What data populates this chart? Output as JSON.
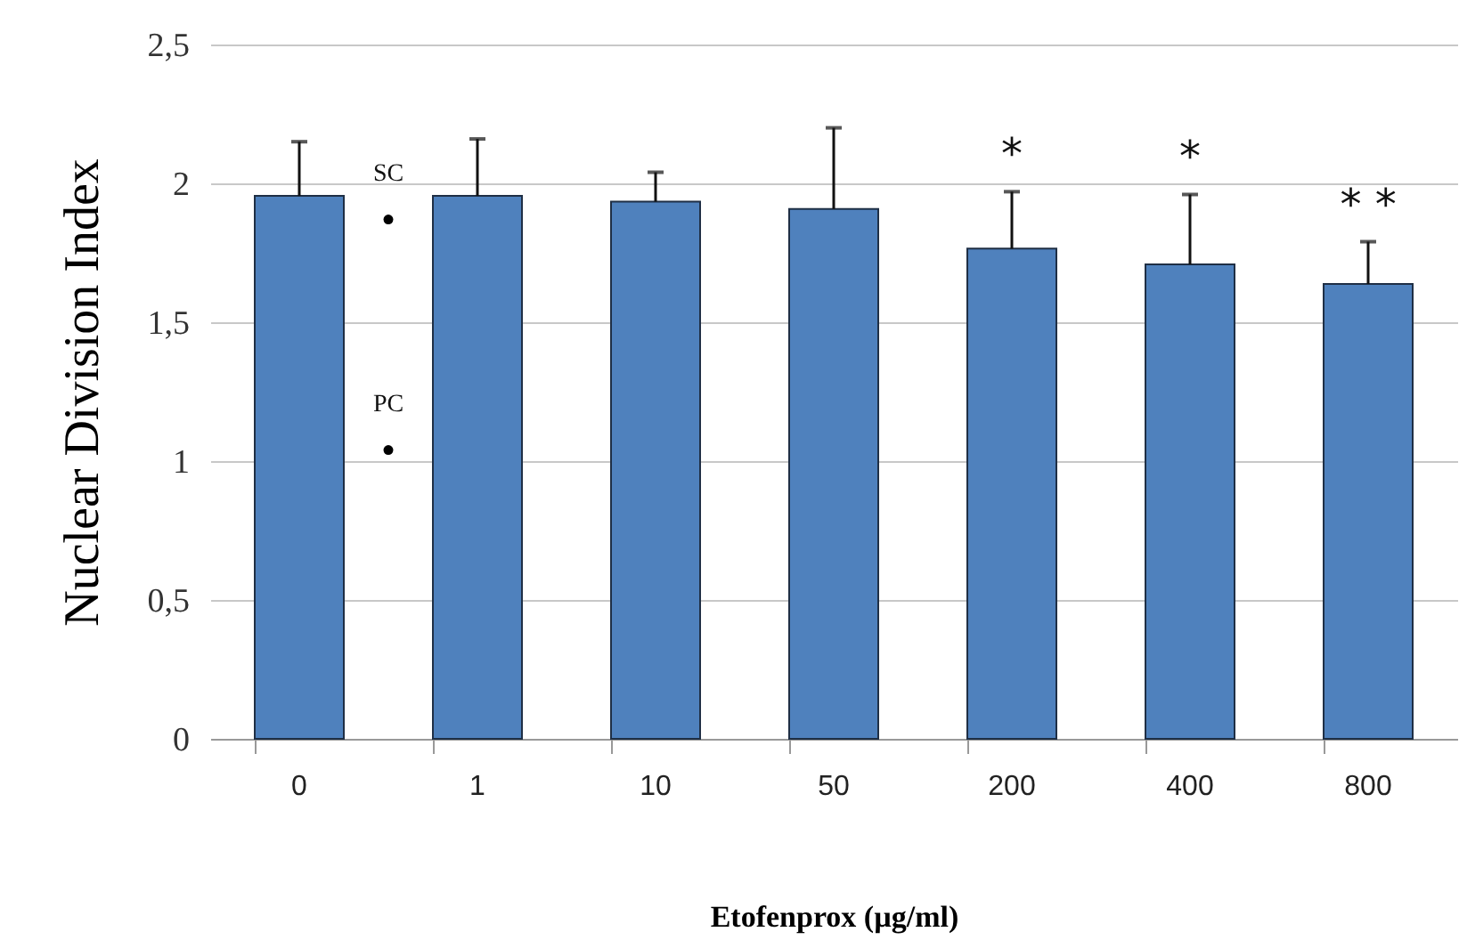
{
  "chart_data": {
    "type": "bar",
    "xlabel": "Etofenprox (µg/ml)",
    "ylabel": "Nuclear Division Index",
    "categories": [
      "0",
      "1",
      "10",
      "50",
      "200",
      "400",
      "800"
    ],
    "values": [
      1.955,
      1.955,
      1.934,
      1.908,
      1.765,
      1.708,
      1.638
    ],
    "errors": [
      [
        1.955,
        2.15
      ],
      [
        1.955,
        2.16
      ],
      [
        1.934,
        2.04
      ],
      [
        1.908,
        2.2
      ],
      [
        1.765,
        1.97
      ],
      [
        1.708,
        1.96
      ],
      [
        1.638,
        1.79
      ]
    ],
    "color": "#4f81bd",
    "ylim": [
      0,
      2.5
    ],
    "yticks": [
      0,
      {
        "value": 0.5,
        "label": "0,5"
      },
      1,
      {
        "value": 1.5,
        "label": "1,5"
      },
      2,
      {
        "value": 2.5,
        "label": "2,5"
      }
    ],
    "grid": "y",
    "value_labels": [
      null,
      null,
      null,
      null,
      "*",
      "*",
      "* *"
    ],
    "annotations": [
      {
        "text": "SC",
        "y": 1.87
      },
      {
        "text": "PC",
        "y": 1.04
      }
    ]
  }
}
